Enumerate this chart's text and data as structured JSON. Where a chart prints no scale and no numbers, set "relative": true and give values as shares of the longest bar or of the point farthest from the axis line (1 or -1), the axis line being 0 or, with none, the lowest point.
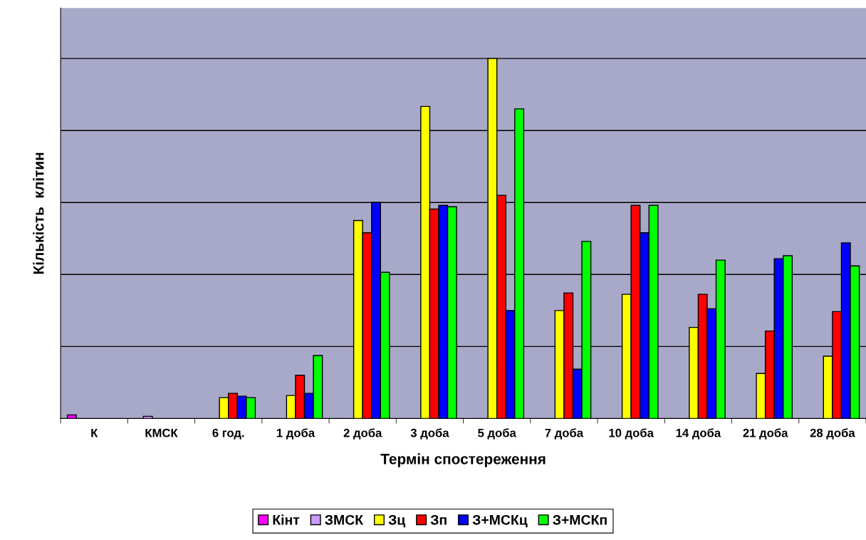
{
  "chart_data": {
    "type": "bar",
    "relative": true,
    "xlabel": "Термін спостереження",
    "ylabel": "Кількість  клітин",
    "grid": "y",
    "legend": "bottom",
    "categories": [
      "К",
      "КМСК",
      "6 год.",
      "1 доба",
      "2 доба",
      "3 доба",
      "5 доба",
      "7 доба",
      "10 доба",
      "14 доба",
      "21 доба",
      "28 доба"
    ],
    "series": [
      {
        "name": "Кінт",
        "color": "#ff00ff",
        "values": [
          0.01,
          null,
          null,
          null,
          null,
          null,
          null,
          null,
          null,
          null,
          null,
          null
        ]
      },
      {
        "name": "ЗМСК",
        "color": "#cc99ff",
        "values": [
          null,
          0.006,
          null,
          null,
          null,
          null,
          null,
          null,
          null,
          null,
          null,
          null
        ]
      },
      {
        "name": "Зц",
        "color": "#ffff00",
        "values": [
          null,
          null,
          0.058,
          0.064,
          0.55,
          0.867,
          1,
          0.3,
          0.345,
          0.253,
          0.125,
          0.173
        ]
      },
      {
        "name": "Зп",
        "color": "#ff0000",
        "values": [
          null,
          null,
          0.07,
          0.12,
          0.516,
          0.582,
          0.62,
          0.349,
          0.592,
          0.345,
          0.243,
          0.297
        ]
      },
      {
        "name": "З+МСКц",
        "color": "#0000ff",
        "values": [
          null,
          null,
          0.062,
          0.07,
          0.6,
          0.592,
          0.3,
          0.137,
          0.516,
          0.305,
          0.444,
          0.488
        ]
      },
      {
        "name": "З+МСКп",
        "color": "#00ff00",
        "values": [
          null,
          null,
          0.058,
          0.175,
          0.406,
          0.588,
          0.86,
          0.492,
          0.592,
          0.44,
          0.452,
          0.424
        ]
      }
    ]
  }
}
